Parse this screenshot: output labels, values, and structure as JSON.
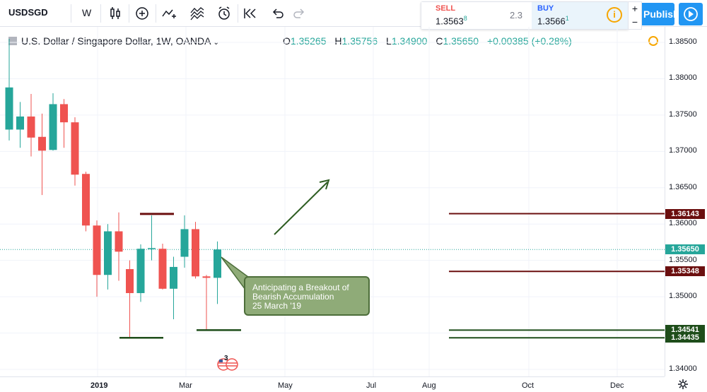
{
  "toolbar": {
    "symbol": "USDSGD",
    "interval": "W",
    "publish_label": "Publish"
  },
  "trade": {
    "sell_label": "SELL",
    "sell_price": "1.3563",
    "sell_price_pip": "8",
    "spread": "2.3",
    "buy_label": "BUY",
    "buy_price": "1.3566",
    "buy_price_pip": "1",
    "zoom_in": "+",
    "zoom_out": "−"
  },
  "legend": {
    "title": "U.S. Dollar / Singapore Dollar, 1W, OANDA",
    "open_key": "O",
    "open": "1.35265",
    "high_key": "H",
    "high": "1.35756",
    "low_key": "L",
    "low": "1.34900",
    "close_key": "C",
    "close": "1.35650",
    "change": "+0.00385 (+0.28%)"
  },
  "annotation": {
    "line1": "Anticipating a Breakout of",
    "line2": "Bearish Accumulation",
    "line3": "25 March '19"
  },
  "events_count": "3",
  "colors": {
    "up": "#26a69a",
    "down": "#ef5350",
    "resistance": "#6b0f0f",
    "support": "#1e4d1a",
    "current_price": "#26a69a",
    "accent": "#2196f3"
  },
  "chart_data": {
    "type": "candlestick",
    "title": "U.S. Dollar / Singapore Dollar, 1W, OANDA",
    "y_ticks": [
      "1.38500",
      "1.38000",
      "1.37500",
      "1.37000",
      "1.36500",
      "1.36000",
      "1.35500",
      "1.35000",
      "1.34500",
      "1.34000"
    ],
    "x_ticks": [
      "2019",
      "Mar",
      "May",
      "Jul",
      "Aug",
      "Oct",
      "Dec"
    ],
    "ylim": [
      1.339,
      1.387
    ],
    "candles": [
      {
        "o": 1.373,
        "h": 1.3855,
        "l": 1.3715,
        "c": 1.3788
      },
      {
        "o": 1.373,
        "h": 1.3768,
        "l": 1.3705,
        "c": 1.3748
      },
      {
        "o": 1.3748,
        "h": 1.3779,
        "l": 1.3693,
        "c": 1.3719
      },
      {
        "o": 1.372,
        "h": 1.3752,
        "l": 1.364,
        "c": 1.3701
      },
      {
        "o": 1.3702,
        "h": 1.378,
        "l": 1.3701,
        "c": 1.3765
      },
      {
        "o": 1.3765,
        "h": 1.3772,
        "l": 1.3705,
        "c": 1.374
      },
      {
        "o": 1.374,
        "h": 1.3747,
        "l": 1.3653,
        "c": 1.3668
      },
      {
        "o": 1.3669,
        "h": 1.3672,
        "l": 1.359,
        "c": 1.3598
      },
      {
        "o": 1.3598,
        "h": 1.3605,
        "l": 1.35,
        "c": 1.353
      },
      {
        "o": 1.353,
        "h": 1.36,
        "l": 1.351,
        "c": 1.359
      },
      {
        "o": 1.359,
        "h": 1.3616,
        "l": 1.3522,
        "c": 1.3562
      },
      {
        "o": 1.3538,
        "h": 1.355,
        "l": 1.3443,
        "c": 1.3505
      },
      {
        "o": 1.3505,
        "h": 1.3572,
        "l": 1.3493,
        "c": 1.3566
      },
      {
        "o": 1.3566,
        "h": 1.3612,
        "l": 1.355,
        "c": 1.3567
      },
      {
        "o": 1.3566,
        "h": 1.3573,
        "l": 1.351,
        "c": 1.3511
      },
      {
        "o": 1.3511,
        "h": 1.3555,
        "l": 1.3469,
        "c": 1.3541
      },
      {
        "o": 1.3555,
        "h": 1.3612,
        "l": 1.354,
        "c": 1.3593
      },
      {
        "o": 1.3593,
        "h": 1.3603,
        "l": 1.3525,
        "c": 1.3528
      },
      {
        "o": 1.3528,
        "h": 1.353,
        "l": 1.3454,
        "c": 1.3526
      },
      {
        "o": 1.3526,
        "h": 1.3576,
        "l": 1.349,
        "c": 1.3565
      }
    ],
    "levels": [
      {
        "label": "1.36143",
        "value": 1.36143,
        "kind": "resistance"
      },
      {
        "label": "1.35650",
        "value": 1.3565,
        "kind": "current"
      },
      {
        "label": "1.35348",
        "value": 1.35348,
        "kind": "resistance"
      },
      {
        "label": "1.34541",
        "value": 1.34541,
        "kind": "support"
      },
      {
        "label": "1.34435",
        "value": 1.34435,
        "kind": "support"
      }
    ]
  }
}
